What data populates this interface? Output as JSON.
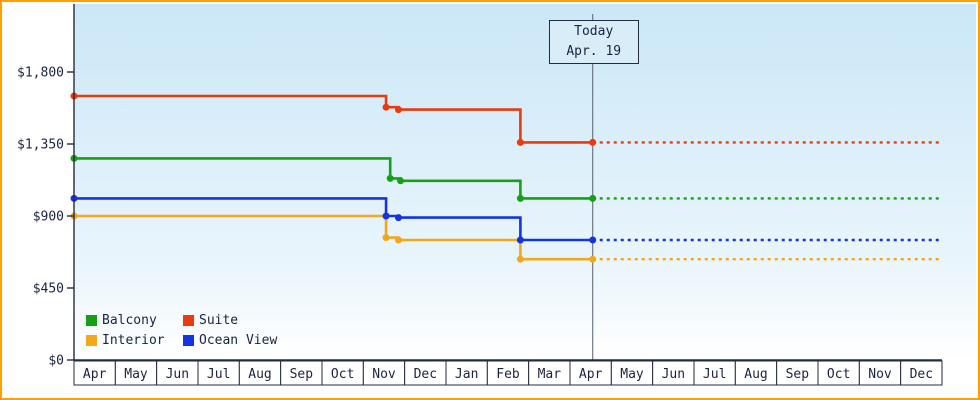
{
  "window": {
    "frame_border_color": "#ffa000"
  },
  "chart_data": {
    "type": "line",
    "subtype": "step-price-history",
    "title": "",
    "xlabel": "",
    "ylabel": "",
    "grid": false,
    "legend_position": "bottom-left-inside",
    "x_months": [
      "Apr",
      "May",
      "Jun",
      "Jul",
      "Aug",
      "Sep",
      "Oct",
      "Nov",
      "Dec",
      "Jan",
      "Feb",
      "Mar",
      "Apr",
      "May",
      "Jun",
      "Jul",
      "Aug",
      "Sep",
      "Oct",
      "Nov",
      "Dec"
    ],
    "y_ticks": [
      {
        "label": "$1,800",
        "value": 1800
      },
      {
        "label": "$1,350",
        "value": 1350
      },
      {
        "label": "$900",
        "value": 900
      },
      {
        "label": "$450",
        "value": 450
      },
      {
        "label": "$0",
        "value": 0
      }
    ],
    "ylim": [
      0,
      2225
    ],
    "today": {
      "x": 12.55,
      "label_line1": "Today",
      "label_line2": "Apr. 19"
    },
    "series": [
      {
        "name": "Interior",
        "color": "#f3a71b",
        "steps": [
          {
            "x": 0,
            "value": 900
          },
          {
            "x": 7.55,
            "value": 765
          },
          {
            "x": 7.85,
            "value": 750
          },
          {
            "x": 10.8,
            "value": 630
          }
        ],
        "current": 630
      },
      {
        "name": "Ocean View",
        "color": "#1434e4",
        "steps": [
          {
            "x": 0,
            "value": 1010
          },
          {
            "x": 7.55,
            "value": 900
          },
          {
            "x": 7.85,
            "value": 890
          },
          {
            "x": 10.8,
            "value": 750
          }
        ],
        "current": 750
      },
      {
        "name": "Balcony",
        "color": "#16a016",
        "steps": [
          {
            "x": 0,
            "value": 1260
          },
          {
            "x": 7.65,
            "value": 1135
          },
          {
            "x": 7.9,
            "value": 1120
          },
          {
            "x": 10.8,
            "value": 1010
          }
        ],
        "current": 1010
      },
      {
        "name": "Suite",
        "color": "#e83b0e",
        "steps": [
          {
            "x": 0,
            "value": 1650
          },
          {
            "x": 7.55,
            "value": 1580
          },
          {
            "x": 7.85,
            "value": 1565
          },
          {
            "x": 10.8,
            "value": 1360
          }
        ],
        "current": 1360
      }
    ],
    "legend": [
      {
        "label": "Balcony",
        "color": "#16a016"
      },
      {
        "label": "Suite",
        "color": "#e83b0e"
      },
      {
        "label": "Interior",
        "color": "#f3a71b"
      },
      {
        "label": "Ocean View",
        "color": "#1434e4"
      }
    ],
    "colors": {
      "axis": "#222b3f",
      "text": "#1c2340",
      "today_line": "#556070",
      "bg_top": "#cbe7f7",
      "bg_bottom": "#ffffff",
      "month_cell_bg": "#ffffff"
    }
  }
}
